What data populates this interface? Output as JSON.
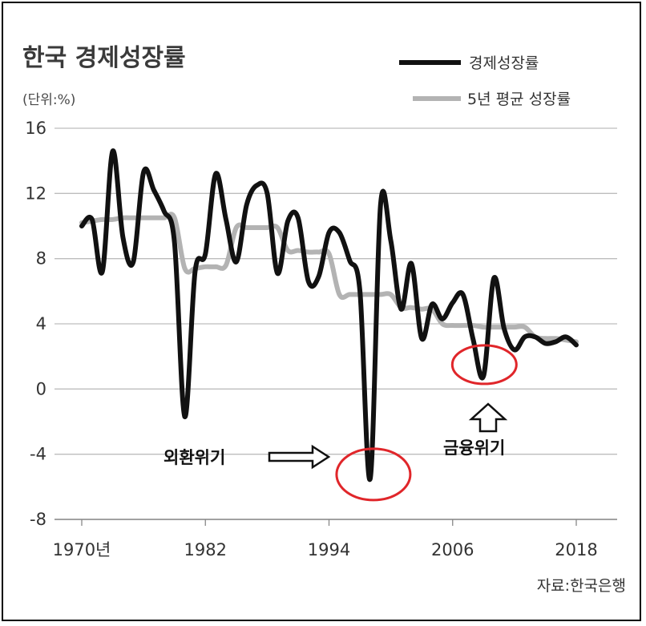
{
  "chart_data": {
    "type": "line",
    "title": "한국 경제성장률",
    "unit": "(단위:%)",
    "source": "자료:한국은행",
    "ylim": [
      -8,
      16
    ],
    "yticks": [
      16,
      12,
      8,
      4,
      0,
      -4,
      -8
    ],
    "xlim": [
      1970,
      2019
    ],
    "xticks": [
      {
        "value": 1970,
        "label": "1970년"
      },
      {
        "value": 1982,
        "label": "1982"
      },
      {
        "value": 1994,
        "label": "1994"
      },
      {
        "value": 2006,
        "label": "2006"
      },
      {
        "value": 2018,
        "label": "2018"
      }
    ],
    "grid": true,
    "legend_position": "top-right",
    "series": [
      {
        "name": "경제성장률",
        "color": "#111111",
        "x": [
          1970,
          1971,
          1972,
          1973,
          1974,
          1975,
          1976,
          1977,
          1978,
          1979,
          1980,
          1981,
          1982,
          1983,
          1984,
          1985,
          1986,
          1987,
          1988,
          1989,
          1990,
          1991,
          1992,
          1993,
          1994,
          1995,
          1996,
          1997,
          1998,
          1999,
          2000,
          2001,
          2002,
          2003,
          2004,
          2005,
          2006,
          2007,
          2008,
          2009,
          2010,
          2011,
          2012,
          2013,
          2014,
          2015,
          2016,
          2017,
          2018
        ],
        "values": [
          10.0,
          10.4,
          7.2,
          14.6,
          9.3,
          7.8,
          13.3,
          12.2,
          10.9,
          9.0,
          -1.7,
          7.2,
          8.3,
          13.2,
          10.4,
          7.8,
          11.3,
          12.5,
          12.0,
          7.1,
          10.3,
          10.5,
          6.6,
          6.9,
          9.6,
          9.6,
          7.9,
          6.0,
          -5.5,
          11.3,
          9.1,
          4.9,
          7.7,
          3.1,
          5.2,
          4.3,
          5.3,
          5.8,
          3.0,
          0.8,
          6.8,
          3.7,
          2.4,
          3.2,
          3.2,
          2.8,
          2.9,
          3.2,
          2.7
        ]
      },
      {
        "name": "5년 평균 성장률",
        "color": "#b3b3b3",
        "x": [
          1970,
          1971,
          1972,
          1973,
          1974,
          1975,
          1976,
          1977,
          1978,
          1979,
          1980,
          1981,
          1982,
          1983,
          1984,
          1985,
          1986,
          1987,
          1988,
          1989,
          1990,
          1991,
          1992,
          1993,
          1994,
          1995,
          1996,
          1997,
          1998,
          1999,
          2000,
          2001,
          2002,
          2003,
          2004,
          2005,
          2006,
          2007,
          2008,
          2009,
          2010,
          2011,
          2012,
          2013,
          2014,
          2015,
          2016,
          2017,
          2018
        ],
        "values": [
          10.2,
          10.3,
          10.4,
          10.4,
          10.5,
          10.5,
          10.5,
          10.5,
          10.5,
          10.5,
          7.4,
          7.4,
          7.5,
          7.5,
          7.6,
          9.9,
          9.9,
          9.9,
          9.9,
          9.9,
          8.5,
          8.5,
          8.4,
          8.4,
          8.3,
          5.8,
          5.8,
          5.8,
          5.8,
          5.8,
          5.8,
          5.0,
          5.0,
          4.9,
          4.9,
          4.0,
          3.9,
          3.9,
          3.9,
          3.8,
          3.8,
          3.8,
          3.8,
          3.8,
          3.2,
          3.1,
          3.1,
          3.0,
          2.9
        ]
      }
    ],
    "annotations": [
      {
        "label": "외환위기",
        "year": 1998,
        "value": -4.7
      },
      {
        "label": "금융위기",
        "year": 2009,
        "value": 1.2
      }
    ]
  }
}
